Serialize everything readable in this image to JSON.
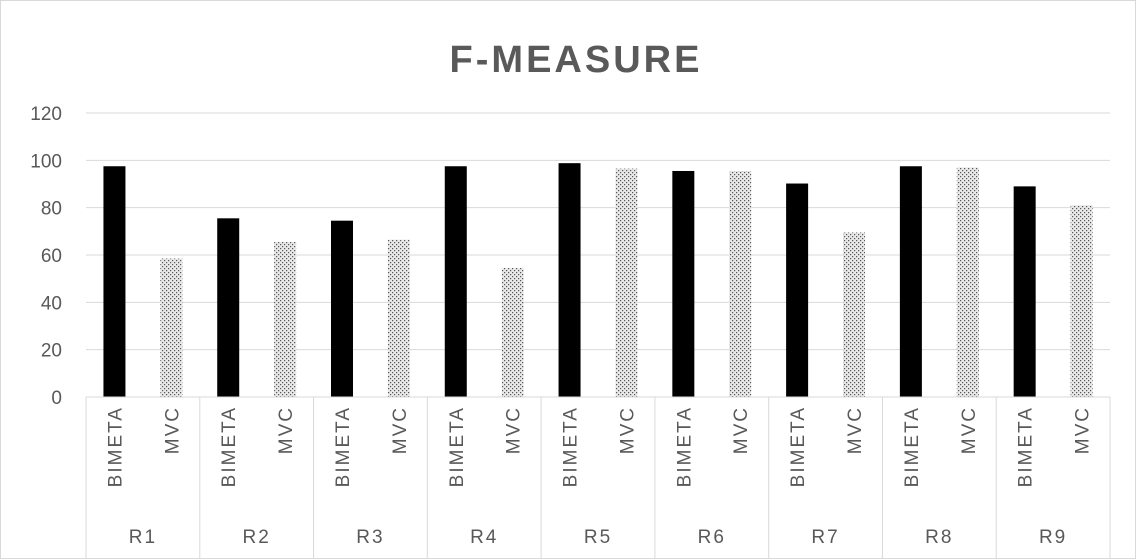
{
  "chart_data": {
    "type": "bar",
    "title": "F-MEASURE",
    "xlabel": "",
    "ylabel": "",
    "ylim": [
      0,
      120
    ],
    "yticks": [
      "0",
      "20",
      "40",
      "60",
      "80",
      "100",
      "120"
    ],
    "grid": true,
    "legend": "none",
    "groups": [
      "R1",
      "R2",
      "R3",
      "R4",
      "R5",
      "R6",
      "R7",
      "R8",
      "R9"
    ],
    "subcategories": [
      "BIMETA",
      "MVC"
    ],
    "series": [
      {
        "values": [
          97.5,
          75.5,
          74.5,
          97.5,
          98.8,
          95.5,
          90.2,
          97.5,
          89
        ]
      },
      {
        "values": [
          58.5,
          65.5,
          66.5,
          54.5,
          96.5,
          95.5,
          69.5,
          97,
          81
        ]
      }
    ],
    "colors": {
      "bimeta": "#000000",
      "mvc_fill": "#d9d9d9",
      "mvc_dot": "#595959",
      "grid": "#d9d9d9",
      "text": "#595959"
    }
  }
}
